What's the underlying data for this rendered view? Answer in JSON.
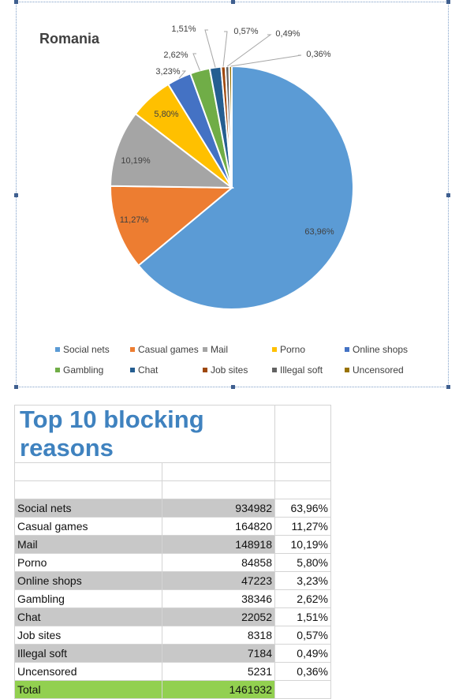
{
  "chart_data": {
    "type": "pie",
    "title": "Romania",
    "categories": [
      "Social nets",
      "Casual games",
      "Mail",
      "Porno",
      "Online shops",
      "Gambling",
      "Chat",
      "Job sites",
      "Illegal soft",
      "Uncensored"
    ],
    "values": [
      63.96,
      11.27,
      10.19,
      5.8,
      3.23,
      2.62,
      1.51,
      0.57,
      0.49,
      0.36
    ],
    "labels": [
      "63,96%",
      "11,27%",
      "10,19%",
      "5,80%",
      "3,23%",
      "2,62%",
      "1,51%",
      "0,57%",
      "0,49%",
      "0,36%"
    ],
    "colors": [
      "#5b9bd5",
      "#ed7d31",
      "#a5a5a5",
      "#ffc000",
      "#4472c4",
      "#70ad47",
      "#255e91",
      "#9e480e",
      "#636363",
      "#997300"
    ],
    "legend_position": "bottom"
  },
  "table": {
    "title": "Top 10 blocking reasons",
    "rows": [
      {
        "name": "Social nets",
        "count": "934982",
        "pct": "63,96%"
      },
      {
        "name": "Casual games",
        "count": "164820",
        "pct": "11,27%"
      },
      {
        "name": "Mail",
        "count": "148918",
        "pct": "10,19%"
      },
      {
        "name": "Porno",
        "count": "84858",
        "pct": "5,80%"
      },
      {
        "name": "Online shops",
        "count": "47223",
        "pct": "3,23%"
      },
      {
        "name": "Gambling",
        "count": "38346",
        "pct": "2,62%"
      },
      {
        "name": "Chat",
        "count": "22052",
        "pct": "1,51%"
      },
      {
        "name": "Job sites",
        "count": "8318",
        "pct": "0,57%"
      },
      {
        "name": "Illegal soft",
        "count": "7184",
        "pct": "0,49%"
      },
      {
        "name": "Uncensored",
        "count": "5231",
        "pct": "0,36%"
      }
    ],
    "total_label": "Total",
    "total_value": "1461932"
  }
}
